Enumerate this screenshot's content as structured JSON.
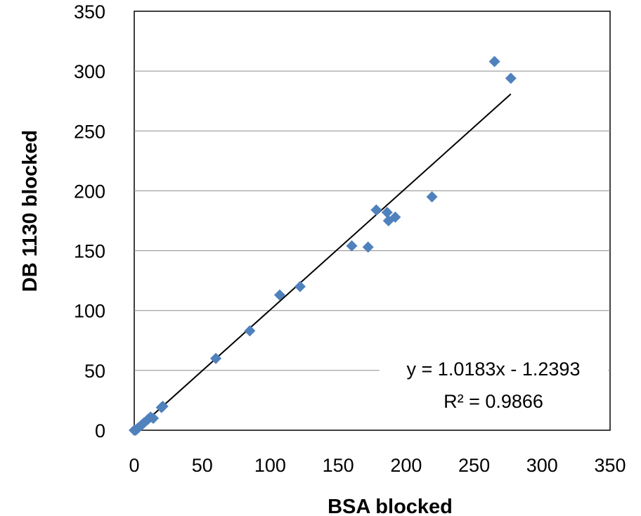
{
  "chart_data": {
    "type": "scatter",
    "title": "",
    "xlabel": "BSA blocked",
    "ylabel": "DB 1130 blocked",
    "xlim": [
      0,
      350
    ],
    "ylim": [
      0,
      350
    ],
    "xticks": [
      "0",
      "50",
      "100",
      "150",
      "200",
      "250",
      "300",
      "350"
    ],
    "yticks": [
      "0",
      "50",
      "100",
      "150",
      "200",
      "250",
      "300",
      "350"
    ],
    "grid": "horizontal",
    "marker_color": "#4F81BD",
    "series": [
      {
        "points": [
          {
            "x": 0,
            "y": 0
          },
          {
            "x": 1,
            "y": 0
          },
          {
            "x": 2,
            "y": 1
          },
          {
            "x": 3,
            "y": 2
          },
          {
            "x": 5,
            "y": 4
          },
          {
            "x": 7,
            "y": 6
          },
          {
            "x": 10,
            "y": 9
          },
          {
            "x": 12,
            "y": 11
          },
          {
            "x": 14,
            "y": 10
          },
          {
            "x": 20,
            "y": 19
          },
          {
            "x": 21,
            "y": 20
          },
          {
            "x": 60,
            "y": 60
          },
          {
            "x": 85,
            "y": 83
          },
          {
            "x": 107,
            "y": 113
          },
          {
            "x": 122,
            "y": 120
          },
          {
            "x": 160,
            "y": 154
          },
          {
            "x": 172,
            "y": 153
          },
          {
            "x": 178,
            "y": 184
          },
          {
            "x": 186,
            "y": 182
          },
          {
            "x": 187,
            "y": 175
          },
          {
            "x": 192,
            "y": 178
          },
          {
            "x": 219,
            "y": 195
          },
          {
            "x": 265,
            "y": 308
          },
          {
            "x": 277,
            "y": 294
          }
        ]
      }
    ],
    "trendline": {
      "slope": 1.0183,
      "intercept": -1.2393,
      "x_range": [
        3,
        277
      ],
      "equation": "y = 1.0183x - 1.2393",
      "r_squared": "R² = 0.9866"
    }
  }
}
